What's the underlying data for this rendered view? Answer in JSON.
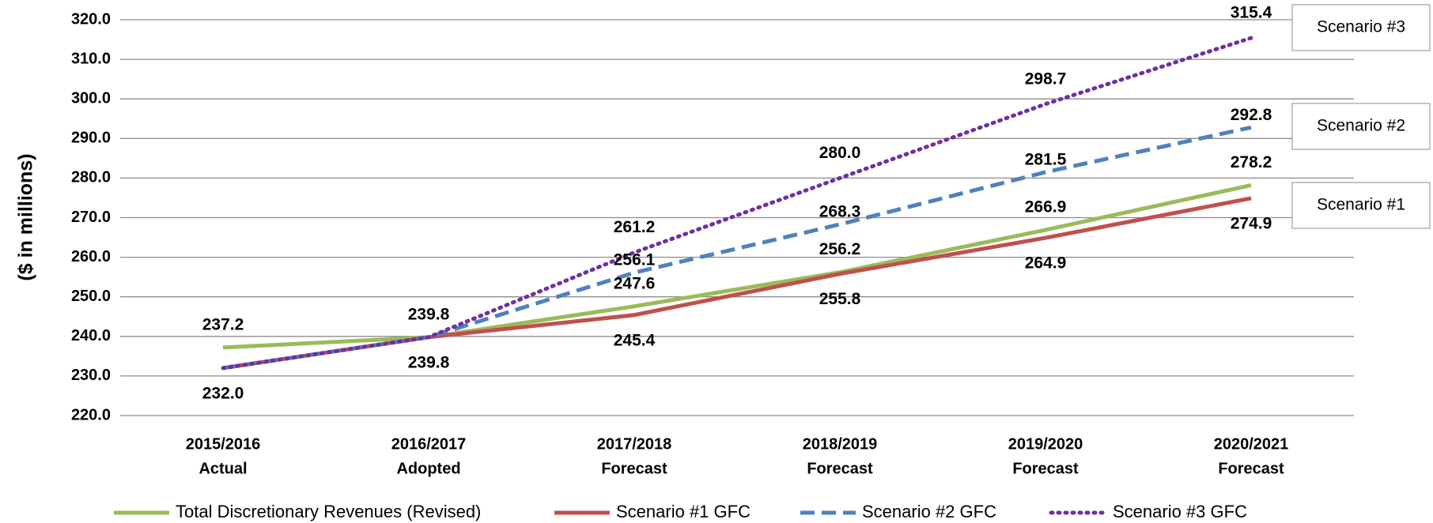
{
  "chart_data": {
    "type": "line",
    "y_label": "($ in millions)",
    "categories": [
      [
        "2015/2016",
        "Actual"
      ],
      [
        "2016/2017",
        "Adopted"
      ],
      [
        "2017/2018",
        "Forecast"
      ],
      [
        "2018/2019",
        "Forecast"
      ],
      [
        "2019/2020",
        "Forecast"
      ],
      [
        "2020/2021",
        "Forecast"
      ]
    ],
    "ylim": [
      220,
      320
    ],
    "yticks": [
      {
        "value": 220,
        "label": "220.0"
      },
      {
        "value": 230,
        "label": "230.0"
      },
      {
        "value": 240,
        "label": "240.0"
      },
      {
        "value": 250,
        "label": "250.0"
      },
      {
        "value": 260,
        "label": "260.0"
      },
      {
        "value": 270,
        "label": "270.0"
      },
      {
        "value": 280,
        "label": "280.0"
      },
      {
        "value": 290,
        "label": "290.0"
      },
      {
        "value": 300,
        "label": "300.0"
      },
      {
        "value": 310,
        "label": "310.0"
      },
      {
        "value": 320,
        "label": "320.0"
      }
    ],
    "grid": true,
    "legend": "bottom",
    "series": [
      {
        "name": "Total Discretionary Revenues (Revised)",
        "color": "#9bbb59",
        "style": "solid",
        "values": [
          237.2,
          239.8,
          247.6,
          256.2,
          266.9,
          278.2
        ],
        "value_labels": [
          "237.2",
          "239.8",
          "247.6",
          "256.2",
          "266.9",
          "278.2"
        ]
      },
      {
        "name": "Scenario #1 GFC",
        "color": "#c0504d",
        "style": "solid",
        "values": [
          232.0,
          239.8,
          245.4,
          255.8,
          264.9,
          274.9
        ],
        "value_labels": [
          "232.0",
          "239.8",
          "245.4",
          "255.8",
          "264.9",
          "274.9"
        ]
      },
      {
        "name": "Scenario #2 GFC",
        "color": "#4f81bd",
        "style": "dashed",
        "values": [
          232.0,
          239.8,
          256.1,
          268.3,
          281.5,
          292.8
        ],
        "value_labels": [
          null,
          null,
          "256.1",
          "268.3",
          "281.5",
          "292.8"
        ]
      },
      {
        "name": "Scenario #3 GFC",
        "color": "#7030a0",
        "style": "dotted",
        "values": [
          232.0,
          239.8,
          261.2,
          280.0,
          298.7,
          315.4
        ],
        "value_labels": [
          null,
          null,
          "261.2",
          "280.0",
          "298.7",
          "315.4"
        ]
      }
    ],
    "annotations": [
      "Scenario #3",
      "Scenario #2",
      "Scenario #1"
    ]
  }
}
